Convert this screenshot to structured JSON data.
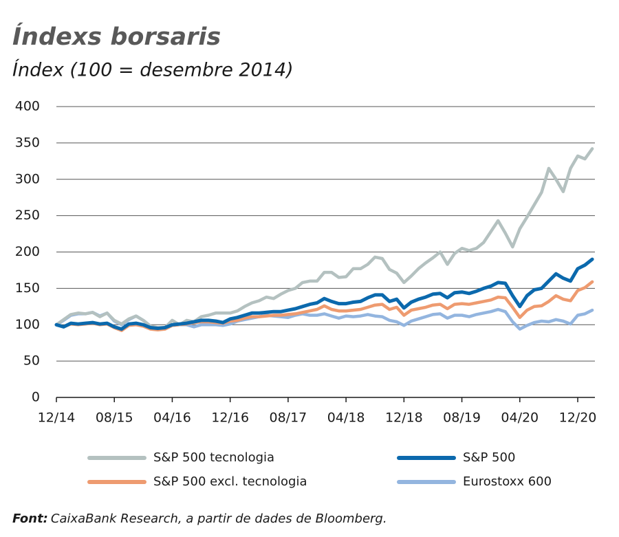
{
  "chart_data": {
    "type": "line",
    "title": "Índexs borsaris",
    "subtitle": "Índex (100 = desembre 2014)",
    "categories": [
      "12/14",
      null,
      null,
      null,
      null,
      null,
      null,
      null,
      "08/15",
      null,
      null,
      null,
      null,
      null,
      null,
      null,
      "04/16",
      null,
      null,
      null,
      null,
      null,
      null,
      null,
      "12/16",
      null,
      null,
      null,
      null,
      null,
      null,
      null,
      "08/17",
      null,
      null,
      null,
      null,
      null,
      null,
      null,
      "04/18",
      null,
      null,
      null,
      null,
      null,
      null,
      null,
      "12/18",
      null,
      null,
      null,
      null,
      null,
      null,
      null,
      "08/19",
      null,
      null,
      null,
      null,
      null,
      null,
      null,
      "04/20",
      null,
      null,
      null,
      null,
      null,
      null,
      null,
      "12/20",
      null,
      null
    ],
    "series": [
      {
        "name": "S&P 500 tecnologia",
        "color": "#b4c1c0",
        "values": [
          100,
          107,
          114,
          116,
          115,
          117,
          111,
          116,
          106,
          101,
          108,
          112,
          106,
          98,
          96,
          96,
          106,
          100,
          106,
          104,
          111,
          113,
          116,
          116,
          116,
          119,
          125,
          130,
          133,
          138,
          136,
          142,
          147,
          150,
          158,
          160,
          160,
          172,
          172,
          165,
          166,
          177,
          177,
          183,
          193,
          191,
          176,
          171,
          158,
          167,
          177,
          185,
          192,
          200,
          183,
          198,
          205,
          202,
          205,
          213,
          228,
          243,
          226,
          207,
          232,
          248,
          265,
          282,
          315,
          300,
          283,
          315,
          332,
          328,
          342
        ]
      },
      {
        "name": "S&P 500",
        "color": "#0b69ad",
        "values": [
          100,
          97,
          102,
          101,
          102,
          103,
          101,
          102,
          97,
          94,
          101,
          102,
          100,
          96,
          95,
          96,
          100,
          101,
          102,
          104,
          106,
          106,
          105,
          103,
          108,
          110,
          113,
          116,
          116,
          117,
          118,
          118,
          120,
          122,
          125,
          128,
          130,
          136,
          132,
          129,
          129,
          131,
          132,
          137,
          141,
          141,
          132,
          135,
          123,
          131,
          135,
          138,
          142,
          143,
          137,
          144,
          145,
          143,
          146,
          150,
          153,
          158,
          157,
          140,
          125,
          140,
          148,
          150,
          160,
          170,
          164,
          160,
          177,
          182,
          190
        ]
      },
      {
        "name": "S&P 500 excl. tecnologia",
        "color": "#ee9b70",
        "values": [
          100,
          97,
          101,
          100,
          101,
          102,
          100,
          101,
          96,
          92,
          99,
          100,
          98,
          94,
          93,
          94,
          99,
          100,
          101,
          103,
          104,
          104,
          103,
          102,
          105,
          106,
          109,
          111,
          111,
          112,
          113,
          113,
          114,
          115,
          117,
          119,
          121,
          126,
          121,
          119,
          119,
          120,
          121,
          124,
          127,
          128,
          121,
          124,
          113,
          120,
          122,
          124,
          127,
          128,
          122,
          128,
          129,
          128,
          130,
          132,
          134,
          138,
          137,
          124,
          110,
          120,
          125,
          126,
          132,
          140,
          135,
          133,
          147,
          151,
          159
        ]
      },
      {
        "name": "Eurostoxx 600",
        "color": "#93b5df",
        "values": [
          100,
          106,
          113,
          115,
          115,
          117,
          112,
          116,
          105,
          100,
          107,
          112,
          106,
          98,
          95,
          94,
          99,
          100,
          100,
          97,
          100,
          100,
          100,
          99,
          101,
          105,
          107,
          109,
          111,
          113,
          112,
          111,
          110,
          113,
          115,
          113,
          113,
          115,
          112,
          109,
          112,
          111,
          112,
          114,
          112,
          111,
          106,
          104,
          99,
          105,
          108,
          111,
          114,
          115,
          109,
          113,
          113,
          111,
          114,
          116,
          118,
          121,
          118,
          104,
          94,
          99,
          103,
          105,
          104,
          107,
          105,
          101,
          113,
          115,
          120
        ]
      }
    ],
    "ylim": [
      0,
      400
    ],
    "yticks": [
      0,
      50,
      100,
      150,
      200,
      250,
      300,
      350,
      400
    ],
    "grid": true,
    "source_label": "Font:",
    "source_text": "CaixaBank Research, a partir de dades de Bloomberg."
  }
}
